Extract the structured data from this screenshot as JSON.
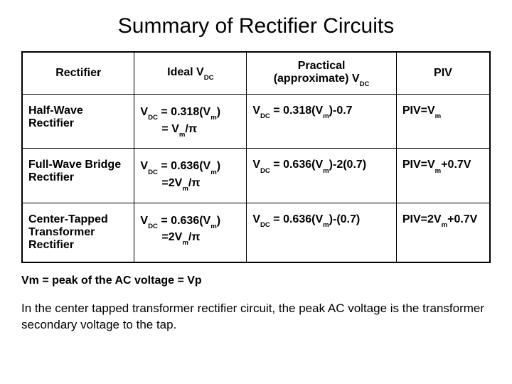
{
  "title": "Summary of Rectifier Circuits",
  "headers": {
    "rectifier": "Rectifier",
    "ideal": "Ideal V",
    "ideal_sub": "DC",
    "practical_line1": "Practical",
    "practical_line2": "(approximate) V",
    "practical_sub": "DC",
    "piv": "PIV"
  },
  "rows": [
    {
      "rectifier": "Half-Wave Rectifier",
      "ideal_line1_pre": "V",
      "ideal_line1_sub1": "DC",
      "ideal_line1_mid": " = 0.318(V",
      "ideal_line1_sub2": "m",
      "ideal_line1_post": ")",
      "ideal_line2_pre": "= V",
      "ideal_line2_sub": "m",
      "ideal_line2_post": "/π",
      "practical_pre": "V",
      "practical_sub1": "DC",
      "practical_mid": " = 0.318(V",
      "practical_sub2": "m",
      "practical_post": ")-0.7",
      "piv_pre": "PIV=V",
      "piv_sub": "m",
      "piv_post": ""
    },
    {
      "rectifier": "Full-Wave Bridge Rectifier",
      "ideal_line1_pre": "V",
      "ideal_line1_sub1": "DC",
      "ideal_line1_mid": " = 0.636(V",
      "ideal_line1_sub2": "m",
      "ideal_line1_post": ")",
      "ideal_line2_pre": "=2V",
      "ideal_line2_sub": "m",
      "ideal_line2_post": "/π",
      "practical_pre": "V",
      "practical_sub1": "DC",
      "practical_mid": " = 0.636(V",
      "practical_sub2": "m",
      "practical_post": ")-2(0.7)",
      "piv_pre": "PIV=V",
      "piv_sub": "m",
      "piv_post": "+0.7V"
    },
    {
      "rectifier": "Center-Tapped Transformer Rectifier",
      "ideal_line1_pre": "V",
      "ideal_line1_sub1": "DC",
      "ideal_line1_mid": " = 0.636(V",
      "ideal_line1_sub2": "m",
      "ideal_line1_post": ")",
      "ideal_line2_pre": "=2V",
      "ideal_line2_sub": "m",
      "ideal_line2_post": "/π",
      "practical_pre": "V",
      "practical_sub1": "DC",
      "practical_mid": " = 0.636(V",
      "practical_sub2": "m",
      "practical_post": ")-(0.7)",
      "piv_pre": "PIV=2V",
      "piv_sub": "m",
      "piv_post": "+0.7V"
    }
  ],
  "note1_pre": "Vm = peak of the AC voltage = Vp",
  "note2": "In the center tapped transformer rectifier circuit, the peak AC voltage is the transformer secondary voltage to the tap."
}
